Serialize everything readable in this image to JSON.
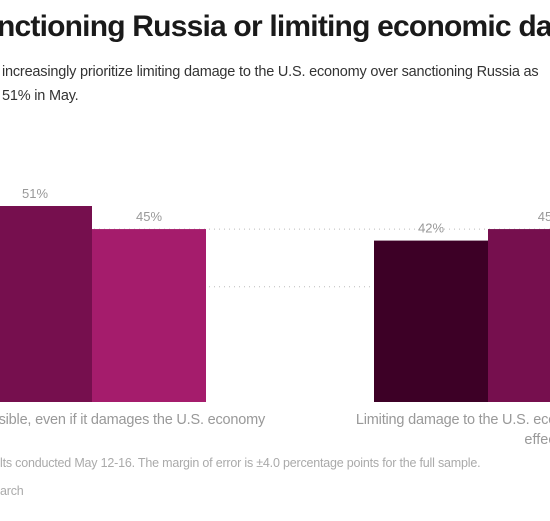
{
  "title": "nctioning Russia or limiting economic damage",
  "subtitle_lines": [
    "increasingly prioritize limiting damage to the U.S. economy over sanctioning Russia as",
    "51% in May."
  ],
  "notes": "lts conducted May 12-16. The margin of error is ±4.0 percentage points for the full sample.",
  "source": "arch",
  "colors": {
    "series_dark": "#3d0026",
    "series_mid": "#760f4e",
    "series_light": "#a51c6c",
    "label_text": "#999999",
    "gridline": "#bbbbbb"
  },
  "chart_data": {
    "type": "bar",
    "categories": [
      "s possible, even if it damages the U.S. economy",
      "Limiting damage to the U.S. economy, eve"
    ],
    "category_second_lines": [
      "",
      "effec"
    ],
    "series": [
      {
        "values": [
          null,
          42
        ],
        "color": "#3d0026"
      },
      {
        "values": [
          51,
          45
        ],
        "color": "#760f4e"
      },
      {
        "values": [
          45,
          null
        ],
        "color": "#a51c6c"
      }
    ],
    "data_labels": [
      [
        "",
        "51%",
        "45%"
      ],
      [
        "42%",
        "45",
        ""
      ]
    ],
    "ylim": [
      0,
      60
    ],
    "gridlines": [
      30,
      45
    ]
  }
}
